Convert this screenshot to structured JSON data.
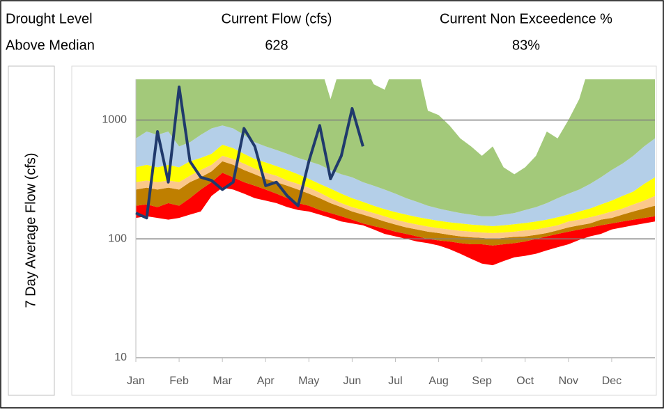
{
  "header": {
    "labels": [
      "Drought Level",
      "Current Flow (cfs)",
      "Current Non Exceedence %"
    ],
    "values": [
      "Above Median",
      "628",
      "83%"
    ]
  },
  "chart_data": {
    "type": "band-line",
    "ylabel": "7 Day Average Flow (cfs)",
    "yscale": "log",
    "ylim": [
      10,
      2200
    ],
    "yticks": [
      10,
      100,
      1000
    ],
    "grid": true,
    "categories": [
      "Jan",
      null,
      null,
      null,
      "Feb",
      null,
      null,
      null,
      "Mar",
      null,
      null,
      null,
      "Apr",
      null,
      null,
      null,
      "May",
      null,
      null,
      null,
      "Jun",
      null,
      null,
      null,
      "Jul",
      null,
      null,
      null,
      "Aug",
      null,
      null,
      null,
      "Sep",
      null,
      null,
      null,
      "Oct",
      null,
      null,
      null,
      "Nov",
      null,
      null,
      null,
      "Dec",
      null,
      null,
      null,
      null
    ],
    "bands": [
      {
        "values": [
          150,
          155,
          150,
          145,
          150,
          160,
          170,
          230,
          270,
          260,
          240,
          220,
          210,
          200,
          185,
          175,
          170,
          160,
          150,
          140,
          135,
          130,
          120,
          110,
          105,
          100,
          95,
          92,
          88,
          82,
          75,
          68,
          62,
          60,
          65,
          70,
          72,
          75,
          80,
          85,
          90,
          98,
          105,
          110,
          120,
          125,
          130,
          135,
          140
        ]
      },
      {
        "color": "#ff0000",
        "values": [
          190,
          195,
          185,
          200,
          190,
          220,
          260,
          300,
          360,
          330,
          300,
          280,
          260,
          240,
          220,
          200,
          190,
          175,
          165,
          155,
          145,
          135,
          128,
          122,
          115,
          110,
          105,
          100,
          97,
          95,
          92,
          90,
          90,
          88,
          90,
          92,
          95,
          100,
          105,
          110,
          115,
          120,
          125,
          130,
          135,
          140,
          145,
          150,
          155
        ]
      },
      {
        "color": "#bf7f00",
        "values": [
          260,
          270,
          260,
          270,
          260,
          300,
          330,
          370,
          450,
          420,
          380,
          350,
          320,
          300,
          280,
          260,
          240,
          220,
          200,
          185,
          170,
          160,
          150,
          140,
          132,
          125,
          120,
          115,
          112,
          108,
          105,
          103,
          102,
          100,
          102,
          104,
          105,
          108,
          112,
          118,
          125,
          130,
          135,
          145,
          150,
          160,
          170,
          180,
          190
        ]
      },
      {
        "color": "#fbc88a",
        "values": [
          300,
          310,
          300,
          310,
          300,
          340,
          380,
          420,
          500,
          470,
          430,
          390,
          360,
          340,
          310,
          290,
          270,
          245,
          220,
          200,
          185,
          175,
          165,
          155,
          145,
          138,
          132,
          127,
          123,
          120,
          117,
          115,
          113,
          112,
          113,
          115,
          118,
          120,
          125,
          130,
          140,
          145,
          152,
          160,
          170,
          180,
          195,
          210,
          230
        ]
      },
      {
        "color": "#ffff00",
        "values": [
          400,
          420,
          400,
          420,
          400,
          450,
          480,
          520,
          620,
          580,
          520,
          470,
          440,
          410,
          380,
          350,
          320,
          290,
          265,
          240,
          220,
          205,
          190,
          178,
          168,
          160,
          153,
          147,
          142,
          138,
          135,
          132,
          130,
          128,
          130,
          133,
          136,
          140,
          145,
          152,
          160,
          170,
          180,
          195,
          210,
          230,
          250,
          290,
          330
        ]
      },
      {
        "color": "#b4cfe8",
        "values": [
          700,
          800,
          750,
          800,
          600,
          650,
          750,
          850,
          900,
          850,
          750,
          650,
          600,
          560,
          520,
          480,
          450,
          420,
          380,
          350,
          330,
          300,
          280,
          260,
          240,
          220,
          205,
          190,
          180,
          172,
          165,
          160,
          155,
          155,
          160,
          165,
          175,
          185,
          200,
          220,
          240,
          260,
          290,
          330,
          380,
          430,
          500,
          600,
          700
        ]
      },
      {
        "color": "#a3c97a",
        "values": [
          3000,
          3000,
          2500,
          3000,
          3000,
          3000,
          3000,
          3000,
          3000,
          3000,
          3000,
          3000,
          3000,
          3000,
          3000,
          3000,
          3000,
          3000,
          1500,
          3000,
          3000,
          3000,
          2000,
          1800,
          3000,
          3000,
          3000,
          1200,
          1100,
          900,
          700,
          600,
          500,
          600,
          400,
          350,
          400,
          500,
          800,
          700,
          1000,
          1500,
          3000,
          3000,
          3000,
          3000,
          3000,
          3000,
          3000
        ]
      }
    ],
    "series": [
      {
        "color": "#203a6c",
        "values": [
          165,
          150,
          800,
          300,
          1900,
          450,
          330,
          310,
          260,
          300,
          850,
          600,
          280,
          300,
          230,
          190,
          450,
          900,
          320,
          500,
          1250,
          600,
          null,
          null,
          null,
          null,
          null,
          null,
          null,
          null,
          null,
          null,
          null,
          null,
          null,
          null,
          null,
          null,
          null,
          null,
          null,
          null,
          null,
          null,
          null,
          null,
          null,
          null,
          null
        ]
      }
    ]
  }
}
